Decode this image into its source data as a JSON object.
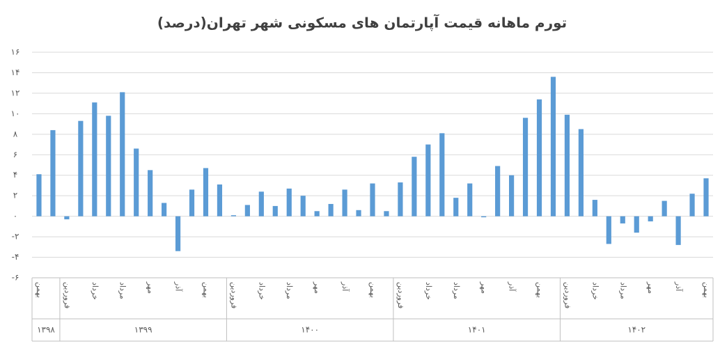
{
  "chart_data": {
    "type": "bar",
    "title": "تورم ماهانه قیمت آپارتمان های مسکونی شهر تهران(درصد)",
    "color": "#5b9bd5",
    "grid": true,
    "ylim": [
      -6,
      16
    ],
    "yticks": [
      {
        "value": -6,
        "label": "-۶"
      },
      {
        "value": -4,
        "label": "-۴"
      },
      {
        "value": -2,
        "label": "-۲"
      },
      {
        "value": 0,
        "label": "۰"
      },
      {
        "value": 2,
        "label": "۲"
      },
      {
        "value": 4,
        "label": "۴"
      },
      {
        "value": 6,
        "label": "۶"
      },
      {
        "value": 8,
        "label": "۸"
      },
      {
        "value": 10,
        "label": "۱۰"
      },
      {
        "value": 12,
        "label": "۱۲"
      },
      {
        "value": 14,
        "label": "۱۴"
      },
      {
        "value": 16,
        "label": "۱۶"
      }
    ],
    "groups": [
      {
        "label": "۱۳۹۸",
        "categories": [
          "بهمن",
          null
        ]
      },
      {
        "label": "۱۳۹۹",
        "categories": [
          "فروردین",
          null,
          "خرداد",
          null,
          "مرداد",
          null,
          "مهر",
          null,
          "آذر",
          null,
          "بهمن",
          null
        ]
      },
      {
        "label": "۱۴۰۰",
        "categories": [
          "فروردین",
          null,
          "خرداد",
          null,
          "مرداد",
          null,
          "مهر",
          null,
          "آذر",
          null,
          "بهمن",
          null
        ]
      },
      {
        "label": "۱۴۰۱",
        "categories": [
          "فروردین",
          null,
          "خرداد",
          null,
          "مرداد",
          null,
          "مهر",
          null,
          "آذر",
          null,
          "بهمن",
          null
        ]
      },
      {
        "label": "۱۴۰۲",
        "categories": [
          "فروردین",
          null,
          "خرداد",
          null,
          "مرداد",
          null,
          "مهر",
          null,
          "آذر",
          null,
          "بهمن"
        ]
      }
    ],
    "values": [
      4.1,
      8.4,
      -0.3,
      9.3,
      11.1,
      9.8,
      12.1,
      6.6,
      4.5,
      1.3,
      -3.4,
      2.6,
      4.7,
      3.1,
      0.1,
      1.1,
      2.4,
      1.0,
      2.7,
      2.0,
      0.5,
      1.2,
      2.6,
      0.6,
      3.2,
      0.5,
      3.3,
      5.8,
      7.0,
      8.1,
      1.8,
      3.2,
      -0.1,
      4.9,
      4.0,
      9.6,
      11.4,
      13.6,
      9.9,
      8.5,
      1.6,
      -2.7,
      -0.7,
      -1.6,
      -0.5,
      1.5,
      -2.8,
      2.2,
      3.7
    ]
  }
}
